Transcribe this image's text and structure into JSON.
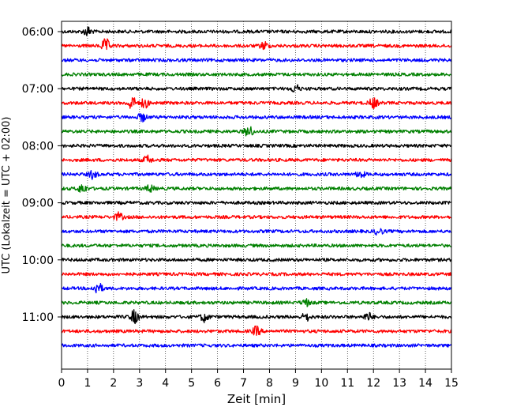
{
  "chart_data": {
    "type": "line",
    "title": "",
    "xlabel": "Zeit  [min]",
    "ylabel": "UTC (Lokalzeit = UTC + 02:00)",
    "xlim": [
      0,
      15
    ],
    "x_ticks": [
      "0",
      "1",
      "2",
      "3",
      "4",
      "5",
      "6",
      "7",
      "8",
      "9",
      "10",
      "11",
      "12",
      "13",
      "14",
      "15"
    ],
    "y_tick_labels": [
      "06:00",
      "07:00",
      "08:00",
      "09:00",
      "10:00",
      "11:00"
    ],
    "y_tick_rows": [
      0,
      4,
      8,
      12,
      16,
      20
    ],
    "grid": {
      "x": "dotted vertical",
      "y": "none"
    },
    "legend": "none",
    "colors": [
      "#000000",
      "#ff0000",
      "#0000ff",
      "#008000"
    ],
    "color_cycle": "black, red, blue, green",
    "rows": [
      {
        "start": "06:00",
        "events": [
          [
            1.0,
            0.7
          ]
        ]
      },
      {
        "start": "06:15",
        "events": [
          [
            1.7,
            1.0
          ],
          [
            7.8,
            0.6
          ]
        ]
      },
      {
        "start": "06:30",
        "events": []
      },
      {
        "start": "06:45",
        "events": []
      },
      {
        "start": "07:00",
        "events": [
          [
            9.0,
            0.6
          ]
        ]
      },
      {
        "start": "07:15",
        "events": [
          [
            2.7,
            1.0
          ],
          [
            3.2,
            0.7
          ],
          [
            12.0,
            0.8
          ]
        ]
      },
      {
        "start": "07:30",
        "events": [
          [
            3.1,
            0.6
          ]
        ]
      },
      {
        "start": "07:45",
        "events": [
          [
            7.2,
            0.9
          ]
        ]
      },
      {
        "start": "08:00",
        "events": []
      },
      {
        "start": "08:15",
        "events": [
          [
            3.3,
            0.6
          ]
        ]
      },
      {
        "start": "08:30",
        "events": [
          [
            1.2,
            0.6
          ],
          [
            11.5,
            0.5
          ]
        ]
      },
      {
        "start": "08:45",
        "events": [
          [
            0.8,
            0.7
          ],
          [
            3.4,
            0.5
          ]
        ]
      },
      {
        "start": "09:00",
        "events": []
      },
      {
        "start": "09:15",
        "events": [
          [
            2.2,
            0.6
          ]
        ]
      },
      {
        "start": "09:30",
        "events": [
          [
            12.2,
            0.5
          ]
        ]
      },
      {
        "start": "09:45",
        "events": []
      },
      {
        "start": "10:00",
        "events": []
      },
      {
        "start": "10:15",
        "events": []
      },
      {
        "start": "10:30",
        "events": [
          [
            1.4,
            0.9
          ]
        ]
      },
      {
        "start": "10:45",
        "events": [
          [
            9.4,
            0.5
          ]
        ]
      },
      {
        "start": "11:00",
        "events": [
          [
            2.8,
            1.0
          ],
          [
            5.5,
            0.7
          ],
          [
            9.4,
            0.6
          ],
          [
            11.8,
            0.6
          ]
        ]
      },
      {
        "start": "11:15",
        "events": [
          [
            7.5,
            0.7
          ]
        ]
      },
      {
        "start": "11:30",
        "events": []
      }
    ]
  }
}
